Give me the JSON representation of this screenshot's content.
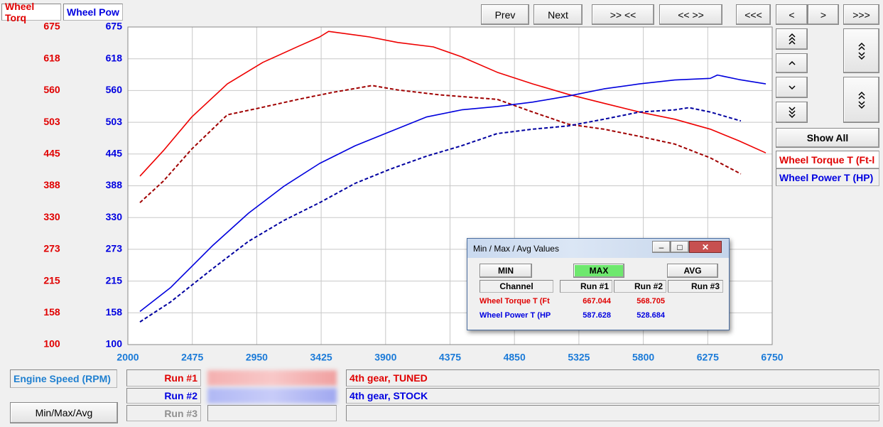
{
  "tabs": [
    "Wheel Torq",
    "Wheel Pow"
  ],
  "toolbar": [
    "Prev",
    "Next",
    ">> <<",
    "<< >>",
    "<<<",
    "<",
    ">",
    ">>>"
  ],
  "show_all": "Show All",
  "channels": [
    "Wheel Torque T (Ft-l",
    "Wheel Power T (HP)"
  ],
  "runs": [
    {
      "label": "Run #1",
      "description": "4th gear, TUNED"
    },
    {
      "label": "Run #2",
      "description": "4th gear, STOCK"
    },
    {
      "label": "Run #3"
    }
  ],
  "button": "Min/Max/Avg",
  "dialog": {
    "title": "Min / Max / Avg Values",
    "buttons": [
      "MIN",
      "MAX",
      "AVG"
    ],
    "headers": [
      "Channel",
      "Run #1",
      "Run #2",
      "Run #3"
    ],
    "rows": [
      [
        "Wheel Torque T (Ft",
        667.044,
        568.705
      ],
      [
        "Wheel Power T (HP",
        587.628,
        528.684
      ]
    ]
  },
  "chart_data": {
    "type": "line",
    "x_label": "Engine Speed (RPM)",
    "xlim": [
      2000,
      6750
    ],
    "xticks": [
      2000,
      2475,
      2950,
      3425,
      3900,
      4375,
      4850,
      5325,
      5800,
      6275,
      6750
    ],
    "ylim": [
      100,
      675
    ],
    "yticks": [
      100,
      {
        "value": 157.5,
        "label": "158"
      },
      215,
      {
        "value": 272.5,
        "label": "273"
      },
      330,
      {
        "value": 387.5,
        "label": "388"
      },
      445,
      {
        "value": 502.5,
        "label": "503"
      },
      560,
      {
        "value": 617.5,
        "label": "618"
      },
      675
    ],
    "y2lim": [
      100,
      675
    ],
    "y2ticks": [
      100,
      {
        "value": 157.5,
        "label": "158"
      },
      215,
      {
        "value": 272.5,
        "label": "273"
      },
      330,
      {
        "value": 387.5,
        "label": "388"
      },
      445,
      {
        "value": 502.5,
        "label": "503"
      },
      560,
      {
        "value": 617.5,
        "label": "618"
      },
      675
    ],
    "grid": true,
    "ycolor": "#e00000",
    "y2color": "#0000e0",
    "series": [
      {
        "color": "#ee0000",
        "style": "solid",
        "x": [
          2089,
          2262,
          2471,
          2733,
          2995,
          3257,
          3414,
          3480,
          3781,
          3990,
          4252,
          4461,
          4723,
          4985,
          5247,
          5509,
          5771,
          6032,
          6294,
          6504,
          6703
        ],
        "values": [
          405,
          451,
          512,
          572,
          611,
          640,
          657,
          667,
          657,
          647,
          639,
          621,
          593,
          572,
          553,
          537,
          521,
          508,
          490,
          469,
          447
        ]
      },
      {
        "color": "#a00000",
        "style": "dashed",
        "x": [
          2089,
          2262,
          2471,
          2733,
          2943,
          3257,
          3519,
          3800,
          3990,
          4304,
          4723,
          4985,
          5247,
          5509,
          5771,
          6032,
          6294,
          6519
        ],
        "values": [
          357,
          396,
          454,
          516,
          527,
          544,
          557,
          569,
          561,
          552,
          544,
          521,
          499,
          490,
          477,
          463,
          438,
          409
        ]
      },
      {
        "color": "#0000dd",
        "style": "solid",
        "axis": "y2",
        "x": [
          2089,
          2314,
          2628,
          2890,
          3152,
          3414,
          3676,
          3938,
          4200,
          4461,
          4723,
          4985,
          5247,
          5509,
          5771,
          6032,
          6294,
          6346,
          6504,
          6703
        ],
        "values": [
          160,
          203,
          280,
          338,
          387,
          428,
          460,
          486,
          512,
          525,
          531,
          539,
          550,
          563,
          572,
          579,
          582,
          588,
          580,
          572
        ]
      },
      {
        "color": "#0000a0",
        "style": "dashed",
        "axis": "y2",
        "x": [
          2089,
          2314,
          2628,
          2890,
          3152,
          3414,
          3676,
          3938,
          4200,
          4461,
          4723,
          4985,
          5247,
          5509,
          5771,
          6032,
          6137,
          6294,
          6519
        ],
        "values": [
          141,
          177,
          238,
          287,
          325,
          357,
          392,
          418,
          441,
          460,
          482,
          490,
          496,
          508,
          521,
          525,
          529,
          521,
          505
        ]
      }
    ]
  }
}
